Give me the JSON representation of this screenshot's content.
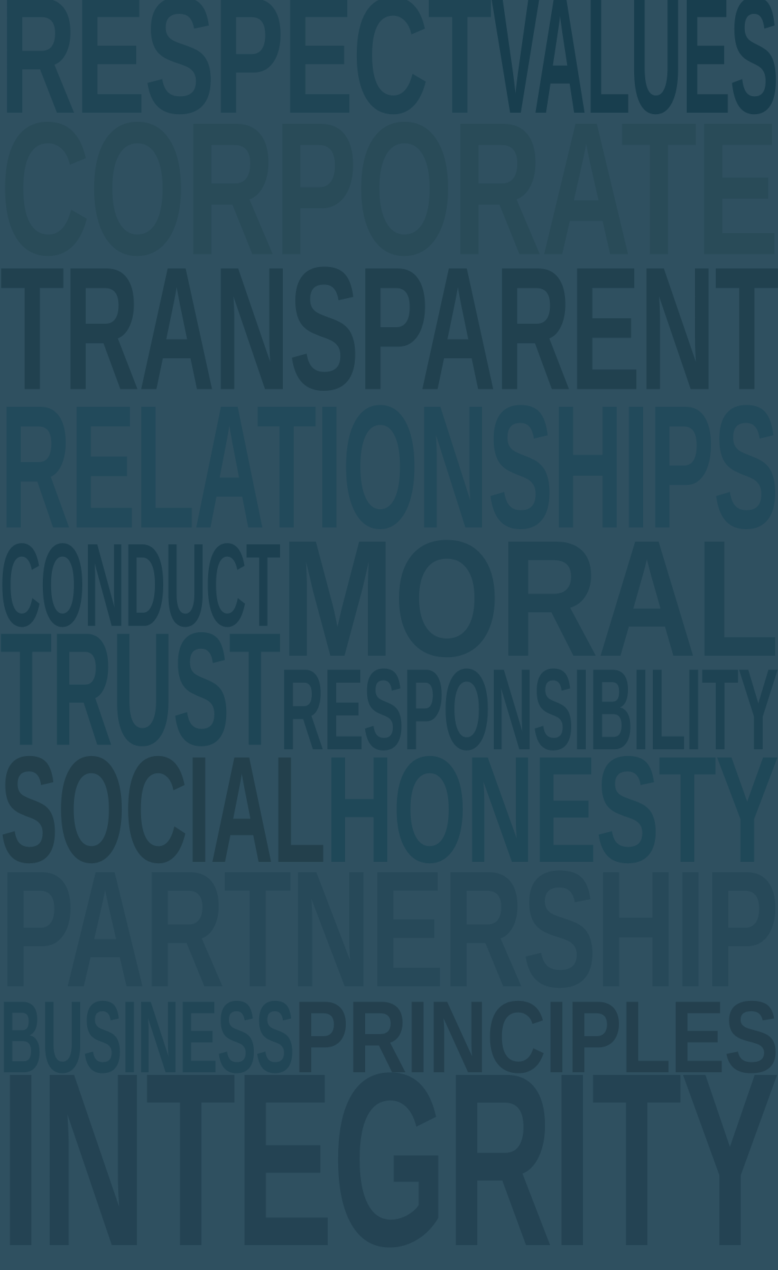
{
  "background_color": "#2f5060",
  "words": [
    {
      "id": "respect",
      "text": "RESPECT",
      "color": "#1f4555"
    },
    {
      "id": "values",
      "text": "VALUES",
      "color": "#183e4e"
    },
    {
      "id": "corporate",
      "text": "CORPORATE",
      "color": "#294b58"
    },
    {
      "id": "transparent",
      "text": "TRANSPARENT",
      "color": "#21414f"
    },
    {
      "id": "relationships",
      "text": "RELATIONSHIPS",
      "color": "#224a5b"
    },
    {
      "id": "conduct",
      "text": "CONDUCT",
      "color": "#1c4050"
    },
    {
      "id": "moral",
      "text": "MORAL",
      "color": "#214656"
    },
    {
      "id": "trust",
      "text": "TRUST",
      "color": "#1e4656"
    },
    {
      "id": "responsibility",
      "text": "RESPONSIBILITY",
      "color": "#1e4353"
    },
    {
      "id": "social",
      "text": "SOCIAL",
      "color": "#23404c"
    },
    {
      "id": "honesty",
      "text": "HONESTY",
      "color": "#1f4858"
    },
    {
      "id": "partnership",
      "text": "PARTNERSHIP",
      "color": "#274959"
    },
    {
      "id": "business",
      "text": "BUSINESS",
      "color": "#214656"
    },
    {
      "id": "principles",
      "text": "PRINCIPLES",
      "color": "#24404e"
    },
    {
      "id": "integrity",
      "text": "INTEGRITY",
      "color": "#244353"
    }
  ]
}
